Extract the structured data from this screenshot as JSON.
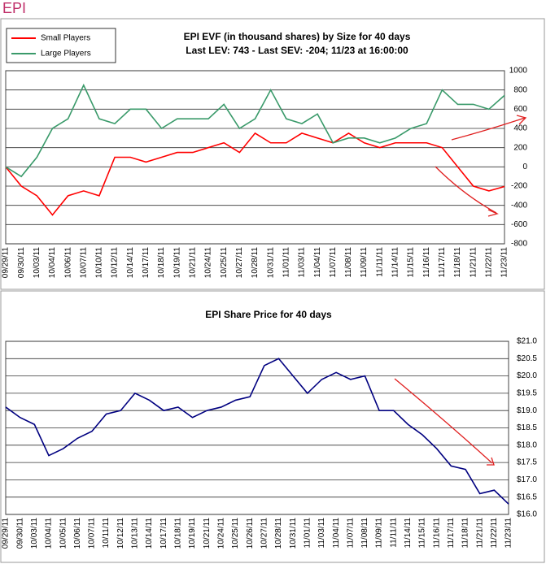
{
  "header": {
    "title": "EPI"
  },
  "chart_data": [
    {
      "type": "line",
      "title": "EPI EVF (in thousand shares) by Size for 40 days",
      "subtitle": "Last LEV: 743 - Last SEV: -204; 11/23 at 16:00:00",
      "categories": [
        "09/29/11",
        "09/30/11",
        "10/03/11",
        "10/04/11",
        "10/06/11",
        "10/07/11",
        "10/10/11",
        "10/12/11",
        "10/14/11",
        "10/17/11",
        "10/18/11",
        "10/19/11",
        "10/21/11",
        "10/24/11",
        "10/25/11",
        "10/27/11",
        "10/28/11",
        "10/31/11",
        "11/01/11",
        "11/03/11",
        "11/04/11",
        "11/07/11",
        "11/08/11",
        "11/09/11",
        "11/11/11",
        "11/14/11",
        "11/15/11",
        "11/16/11",
        "11/17/11",
        "11/18/11",
        "11/21/11",
        "11/22/11",
        "11/23/11"
      ],
      "series": [
        {
          "name": "Small Players",
          "color": "#ff0000",
          "values": [
            0,
            -200,
            -300,
            -500,
            -300,
            -250,
            -300,
            100,
            100,
            50,
            100,
            150,
            150,
            200,
            250,
            150,
            350,
            250,
            250,
            350,
            300,
            250,
            350,
            250,
            200,
            250,
            250,
            250,
            200,
            0,
            -200,
            -250,
            -204
          ]
        },
        {
          "name": "Large Players",
          "color": "#3a9a6a",
          "values": [
            0,
            -100,
            100,
            400,
            500,
            850,
            500,
            450,
            600,
            600,
            400,
            500,
            500,
            500,
            650,
            400,
            500,
            800,
            500,
            450,
            550,
            250,
            300,
            300,
            250,
            300,
            400,
            450,
            800,
            650,
            650,
            600,
            743
          ]
        }
      ],
      "ylim": [
        -800,
        1000
      ],
      "yticks": [
        -800,
        -600,
        -400,
        -200,
        0,
        200,
        400,
        600,
        800,
        1000
      ],
      "grid": true,
      "legend": "top-left"
    },
    {
      "type": "line",
      "title": "EPI Share Price for 40 days",
      "categories": [
        "09/29/11",
        "09/30/11",
        "10/03/11",
        "10/04/11",
        "10/05/11",
        "10/06/11",
        "10/07/11",
        "10/11/11",
        "10/12/11",
        "10/13/11",
        "10/14/11",
        "10/17/11",
        "10/18/11",
        "10/19/11",
        "10/21/11",
        "10/24/11",
        "10/25/11",
        "10/26/11",
        "10/27/11",
        "10/28/11",
        "10/31/11",
        "11/01/11",
        "11/03/11",
        "11/04/11",
        "11/07/11",
        "11/08/11",
        "11/09/11",
        "11/11/11",
        "11/14/11",
        "11/15/11",
        "11/16/11",
        "11/17/11",
        "11/18/11",
        "11/21/11",
        "11/22/11",
        "11/23/11"
      ],
      "series": [
        {
          "name": "EPI",
          "color": "#000080",
          "values": [
            19.1,
            18.8,
            18.6,
            17.7,
            17.9,
            18.2,
            18.4,
            18.9,
            19.0,
            19.5,
            19.3,
            19.0,
            19.1,
            18.8,
            19.0,
            19.1,
            19.3,
            19.4,
            20.3,
            20.5,
            20.0,
            19.5,
            19.9,
            20.1,
            19.9,
            20.0,
            19.0,
            19.0,
            18.6,
            18.3,
            17.9,
            17.4,
            17.3,
            16.6,
            16.7,
            16.3
          ]
        }
      ],
      "ylim": [
        16,
        21
      ],
      "yticks": [
        {
          "value": 16,
          "label": "$16.0"
        },
        {
          "value": 16.5,
          "label": "$16.5"
        },
        {
          "value": 17,
          "label": "$17.0"
        },
        {
          "value": 17.5,
          "label": "$17.5"
        },
        {
          "value": 18,
          "label": "$18.0"
        },
        {
          "value": 18.5,
          "label": "$18.5"
        },
        {
          "value": 19,
          "label": "$19.0"
        },
        {
          "value": 19.5,
          "label": "$19.5"
        },
        {
          "value": 20,
          "label": "$20.0"
        },
        {
          "value": 20.5,
          "label": "$20.5"
        },
        {
          "value": 21,
          "label": "$21.0"
        }
      ],
      "grid": true
    }
  ]
}
